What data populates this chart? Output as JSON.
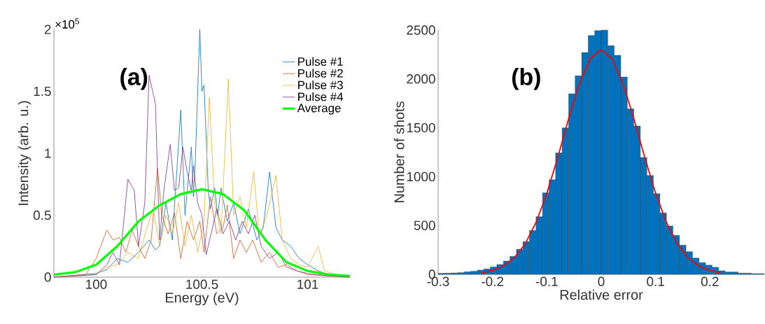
{
  "chart_data": [
    {
      "type": "line",
      "xlabel": "Energy (eV)",
      "ylabel": "Intensity (arb. u.)",
      "xlim": [
        99.8,
        101.2
      ],
      "ylim": [
        0,
        2
      ],
      "xticks": [
        100,
        100.5,
        101
      ],
      "yticks": [
        0,
        0.5,
        1,
        1.5,
        2
      ],
      "legend": "top right",
      "annotations": [
        "(a)",
        "×10$^{5}$"
      ],
      "series": [
        {
          "name": "Pulse #1",
          "color": "#0072bd",
          "x": [
            99.8,
            100.0,
            100.05,
            100.1,
            100.15,
            100.2,
            100.25,
            100.28,
            100.3,
            100.33,
            100.36,
            100.4,
            100.42,
            100.45,
            100.46,
            100.47,
            100.49,
            100.5,
            100.51,
            100.53,
            100.54,
            100.56,
            100.575,
            100.59,
            100.62,
            100.65,
            100.68,
            100.72,
            100.76,
            100.79,
            100.82,
            100.85,
            100.88,
            100.92,
            100.96,
            101.0,
            101.05,
            101.1
          ],
          "values": [
            0,
            0.03,
            0.06,
            0.15,
            0.12,
            0.2,
            0.3,
            0.22,
            0.25,
            0.6,
            0.3,
            1.35,
            0.5,
            1.05,
            0.65,
            1.0,
            2.0,
            1.5,
            1.55,
            0.7,
            0.55,
            0.72,
            0.5,
            0.72,
            0.45,
            0.6,
            0.35,
            0.55,
            0.3,
            0.4,
            0.85,
            0.4,
            0.3,
            0.25,
            0.15,
            0.1,
            0.05,
            0.02
          ]
        },
        {
          "name": "Pulse #2",
          "color": "#d95319",
          "x": [
            99.8,
            99.95,
            100.0,
            100.05,
            100.08,
            100.11,
            100.14,
            100.17,
            100.2,
            100.23,
            100.26,
            100.29,
            100.31,
            100.34,
            100.37,
            100.4,
            100.43,
            100.46,
            100.49,
            100.51,
            100.54,
            100.57,
            100.6,
            100.62,
            100.65,
            100.68,
            100.71,
            100.74,
            100.78,
            100.82,
            100.86,
            100.9,
            100.95,
            101.0,
            101.1,
            101.2
          ],
          "values": [
            0,
            0.02,
            0.15,
            0.38,
            0.3,
            0.32,
            0.2,
            0.38,
            0.25,
            0.15,
            0.3,
            0.88,
            0.5,
            0.35,
            0.52,
            0.15,
            0.45,
            0.3,
            0.45,
            0.2,
            0.65,
            0.35,
            0.4,
            0.58,
            0.15,
            0.3,
            0.2,
            0.3,
            0.12,
            0.2,
            0.08,
            0.1,
            0.05,
            0.02,
            0.01,
            0
          ]
        },
        {
          "name": "Pulse #3",
          "color": "#edb120",
          "x": [
            99.8,
            100.0,
            100.05,
            100.1,
            100.15,
            100.2,
            100.24,
            100.27,
            100.3,
            100.33,
            100.36,
            100.39,
            100.42,
            100.45,
            100.48,
            100.51,
            100.535,
            100.56,
            100.59,
            100.625,
            100.65,
            100.68,
            100.71,
            100.745,
            100.77,
            100.8,
            100.85,
            100.88,
            100.92,
            100.96,
            101.0,
            101.05,
            101.08,
            101.15,
            101.2
          ],
          "values": [
            0,
            0.02,
            0.08,
            0.1,
            0.2,
            0.15,
            0.4,
            0.55,
            0.25,
            0.5,
            0.35,
            0.6,
            0.25,
            0.5,
            0.2,
            0.45,
            1.45,
            0.6,
            0.35,
            1.6,
            0.5,
            0.65,
            0.4,
            0.85,
            0.35,
            0.45,
            0.82,
            0.3,
            0.15,
            0.1,
            0.08,
            0.25,
            0.05,
            0.01,
            0
          ]
        },
        {
          "name": "Pulse #4",
          "color": "#7e2f8e",
          "x": [
            99.8,
            100.0,
            100.05,
            100.08,
            100.11,
            100.15,
            100.18,
            100.2,
            100.23,
            100.25,
            100.28,
            100.3,
            100.32,
            100.35,
            100.37,
            100.39,
            100.41,
            100.43,
            100.45,
            100.46,
            100.48,
            100.5,
            100.52,
            100.55,
            100.57,
            100.6,
            100.63,
            100.66,
            100.69,
            100.72,
            100.75,
            100.78,
            100.82,
            100.86,
            100.9,
            100.95,
            101.0,
            101.1,
            101.2
          ],
          "values": [
            0,
            0.02,
            0.1,
            0.2,
            0.1,
            0.79,
            0.7,
            0.25,
            0.6,
            1.63,
            1.4,
            0.3,
            0.7,
            1.07,
            0.7,
            0.72,
            1.05,
            0.85,
            0.7,
            0.9,
            0.6,
            0.5,
            0.18,
            0.4,
            0.55,
            0.35,
            0.45,
            0.3,
            0.45,
            0.35,
            0.5,
            0.25,
            0.15,
            0.2,
            0.08,
            0.05,
            0.03,
            0.01,
            0
          ]
        },
        {
          "name": "Average",
          "color": "#00ff00",
          "x": [
            99.8,
            99.9,
            100.0,
            100.1,
            100.2,
            100.3,
            100.4,
            100.5,
            100.6,
            100.7,
            100.8,
            100.9,
            101.0,
            101.1,
            101.2
          ],
          "values": [
            0.02,
            0.04,
            0.1,
            0.25,
            0.45,
            0.58,
            0.67,
            0.71,
            0.67,
            0.54,
            0.3,
            0.12,
            0.05,
            0.02,
            0.01
          ]
        }
      ]
    },
    {
      "type": "histogram",
      "xlabel": "Relative error",
      "ylabel": "Number of shots",
      "xlim": [
        -0.3,
        0.3
      ],
      "ylim": [
        0,
        2500
      ],
      "xticks": [
        -0.3,
        -0.2,
        -0.1,
        0,
        0.1,
        0.2
      ],
      "yticks": [
        0,
        500,
        1000,
        1500,
        2000,
        2500
      ],
      "color": "#0072bd",
      "annotations": [
        "(b)"
      ],
      "bins": [
        -0.3,
        -0.288,
        -0.276,
        -0.264,
        -0.252,
        -0.24,
        -0.228,
        -0.216,
        -0.204,
        -0.192,
        -0.18,
        -0.168,
        -0.156,
        -0.144,
        -0.132,
        -0.12,
        -0.108,
        -0.096,
        -0.084,
        -0.072,
        -0.06,
        -0.048,
        -0.036,
        -0.024,
        -0.012,
        0,
        0.012,
        0.024,
        0.036,
        0.048,
        0.06,
        0.072,
        0.084,
        0.096,
        0.108,
        0.12,
        0.132,
        0.144,
        0.156,
        0.168,
        0.18,
        0.192,
        0.204,
        0.216,
        0.228,
        0.24,
        0.252,
        0.264,
        0.276,
        0.288,
        0.3
      ],
      "values": [
        10,
        12,
        14,
        17,
        26,
        31,
        43,
        55,
        76,
        100,
        136,
        184,
        256,
        335,
        449,
        590,
        834,
        968,
        1243,
        1499,
        1848,
        2032,
        2270,
        2445,
        2495,
        2500,
        2340,
        2242,
        2020,
        1695,
        1518,
        1197,
        1011,
        825,
        629,
        495,
        399,
        299,
        232,
        167,
        120,
        94,
        72,
        36,
        24,
        24,
        12,
        12,
        7,
        7
      ],
      "series": [
        {
          "type": "line",
          "color": "#ff0000",
          "x": [
            -0.22,
            -0.2,
            -0.18,
            -0.16,
            -0.14,
            -0.12,
            -0.1,
            -0.08,
            -0.06,
            -0.04,
            -0.02,
            0,
            0.02,
            0.04,
            0.06,
            0.08,
            0.1,
            0.12,
            0.14,
            0.16,
            0.18,
            0.2,
            0.22
          ],
          "values": [
            16,
            39,
            84,
            169,
            311,
            530,
            829,
            1197,
            1593,
            1953,
            2208,
            2300,
            2208,
            1953,
            1593,
            1197,
            829,
            530,
            311,
            169,
            84,
            39,
            16
          ]
        }
      ]
    }
  ]
}
